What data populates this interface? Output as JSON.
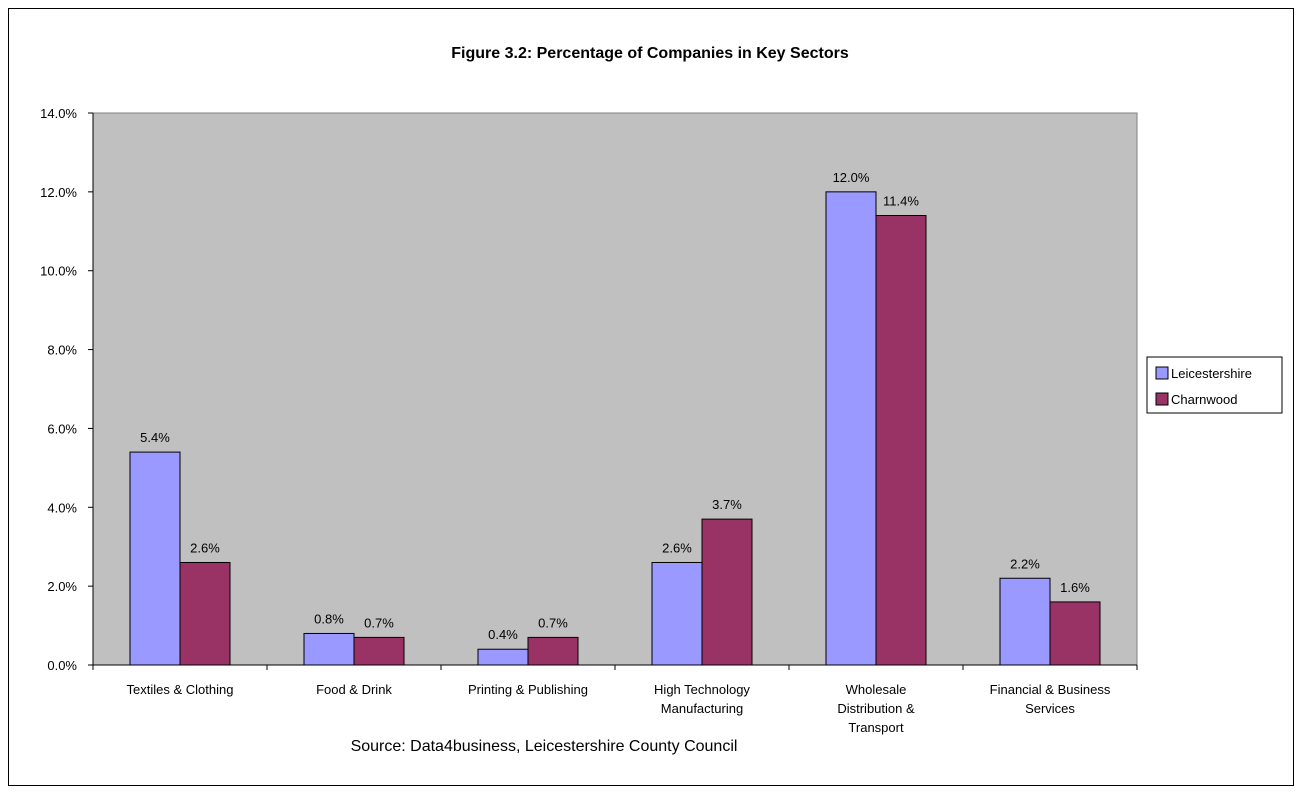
{
  "chart_data": {
    "type": "bar",
    "title": "Figure 3.2: Percentage of Companies in Key Sectors",
    "source": "Source: Data4business, Leicestershire County Council",
    "categories": [
      [
        "Textiles & Clothing"
      ],
      [
        "Food & Drink"
      ],
      [
        "Printing & Publishing"
      ],
      [
        "High Technology",
        "Manufacturing"
      ],
      [
        "Wholesale",
        "Distribution &",
        "Transport"
      ],
      [
        "Financial & Business",
        "Services"
      ]
    ],
    "series": [
      {
        "name": "Leicestershire",
        "color": "#9999ff",
        "values": [
          5.4,
          0.8,
          0.4,
          2.6,
          12.0,
          2.2
        ],
        "labels": [
          "5.4%",
          "0.8%",
          "0.4%",
          "2.6%",
          "12.0%",
          "2.2%"
        ]
      },
      {
        "name": "Charnwood",
        "color": "#993366",
        "values": [
          2.6,
          0.7,
          0.7,
          3.7,
          11.4,
          1.6
        ],
        "labels": [
          "2.6%",
          "0.7%",
          "0.7%",
          "3.7%",
          "11.4%",
          "1.6%"
        ]
      }
    ],
    "ylim": [
      0,
      14
    ],
    "yticks": [
      "0.0%",
      "2.0%",
      "4.0%",
      "6.0%",
      "8.0%",
      "10.0%",
      "12.0%",
      "14.0%"
    ],
    "plot_background": "#c0c0c0",
    "grid": false,
    "legend_position": "right"
  }
}
